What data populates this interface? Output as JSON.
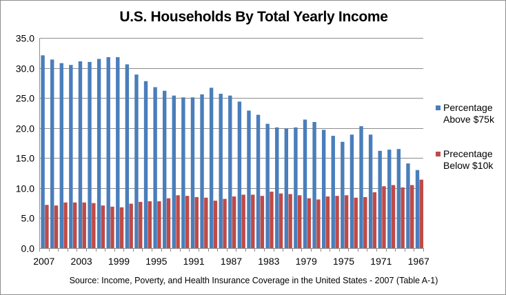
{
  "chart_data": {
    "type": "bar",
    "title": "U.S. Households By Total Yearly Income",
    "source": "Source: Income, Poverty, and Health Insurance Coverage in the United States - 2007 (Table A-1)",
    "xlabel": "",
    "ylabel": "",
    "ylim": [
      0,
      35
    ],
    "yticks": [
      "0.0",
      "5.0",
      "10.0",
      "15.0",
      "20.0",
      "25.0",
      "30.0",
      "35.0"
    ],
    "grid": true,
    "legend_position": "right",
    "x_tick_labels": [
      "2007",
      "2003",
      "1999",
      "1995",
      "1991",
      "1987",
      "1983",
      "1979",
      "1975",
      "1971",
      "1967"
    ],
    "categories": [
      "2007",
      "2006",
      "2005",
      "2004",
      "2003",
      "2002",
      "2001",
      "2000",
      "1999",
      "1998",
      "1997",
      "1996",
      "1995",
      "1994",
      "1993",
      "1992",
      "1991",
      "1990",
      "1989",
      "1988",
      "1987",
      "1986",
      "1985",
      "1984",
      "1983",
      "1982",
      "1981",
      "1980",
      "1979",
      "1978",
      "1977",
      "1976",
      "1975",
      "1974",
      "1973",
      "1972",
      "1971",
      "1970",
      "1969",
      "1968",
      "1967"
    ],
    "series": [
      {
        "name": "Percentage Above $75k",
        "legend_line1": "Percentage",
        "legend_line2": "Above $75k",
        "color": "#4a7ebb",
        "values": [
          32.1,
          31.4,
          30.8,
          30.5,
          31.1,
          31.0,
          31.5,
          31.8,
          31.8,
          30.6,
          28.9,
          27.8,
          26.8,
          26.2,
          25.4,
          25.1,
          25.1,
          25.6,
          26.7,
          25.7,
          25.4,
          24.4,
          22.9,
          22.2,
          20.7,
          20.1,
          19.9,
          20.1,
          21.4,
          21.0,
          19.7,
          18.7,
          17.7,
          18.9,
          20.3,
          18.9,
          16.2,
          16.4,
          16.5,
          14.1,
          13.0
        ]
      },
      {
        "name": "Precentage Below $10k",
        "legend_line1": "Precentage",
        "legend_line2": "Below $10k",
        "color": "#be4b48",
        "values": [
          7.2,
          7.1,
          7.6,
          7.6,
          7.6,
          7.5,
          7.1,
          6.9,
          6.8,
          7.4,
          7.7,
          7.8,
          7.8,
          8.3,
          8.8,
          8.7,
          8.5,
          8.4,
          7.9,
          8.2,
          8.6,
          8.9,
          8.9,
          8.7,
          9.4,
          9.1,
          9.0,
          8.8,
          8.3,
          8.1,
          8.6,
          8.7,
          8.8,
          8.4,
          8.5,
          9.3,
          10.3,
          10.5,
          10.1,
          10.5,
          11.4
        ]
      }
    ]
  }
}
